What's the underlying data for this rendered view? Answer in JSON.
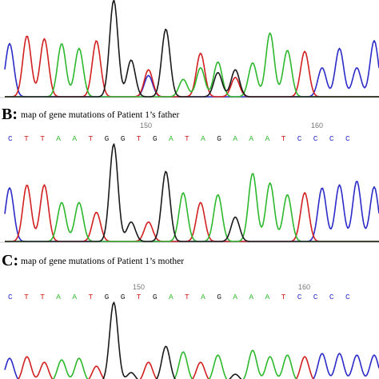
{
  "colors": {
    "A": "#2db82d",
    "C": "#2b2bc8",
    "G": "#1a1a1a",
    "T": "#d22020"
  },
  "panels": [
    {
      "id": "A",
      "letter": "",
      "title": "",
      "positions": [],
      "sequence": "",
      "peaks": [
        {
          "base": "C",
          "h": 0.55
        },
        {
          "base": "T",
          "h": 0.63
        },
        {
          "base": "T",
          "h": 0.6
        },
        {
          "base": "A",
          "h": 0.55
        },
        {
          "base": "A",
          "h": 0.5
        },
        {
          "base": "T",
          "h": 0.58
        },
        {
          "base": "G",
          "h": 1.0
        },
        {
          "base": "G",
          "h": 0.38
        },
        {
          "base": "T",
          "h": 0.28
        },
        {
          "base": "G",
          "h": 0.7
        },
        {
          "base": "A",
          "h": 0.18
        },
        {
          "base": "T",
          "h": 0.45
        },
        {
          "base": "A",
          "h": 0.36
        },
        {
          "base": "G",
          "h": 0.28
        },
        {
          "base": "A",
          "h": 0.35
        },
        {
          "base": "A",
          "h": 0.66
        },
        {
          "base": "A",
          "h": 0.48
        },
        {
          "base": "T",
          "h": 0.25
        },
        {
          "base": "C",
          "h": 0.3
        },
        {
          "base": "C",
          "h": 0.32
        },
        {
          "base": "C",
          "h": 0.3
        },
        {
          "base": "C",
          "h": 0.58
        }
      ],
      "secondary": [
        {
          "base": "C",
          "at": 8,
          "h": 0.22
        },
        {
          "base": "A",
          "at": 11,
          "h": 0.3
        },
        {
          "base": "G",
          "at": 12,
          "h": 0.25
        },
        {
          "base": "T",
          "at": 13,
          "h": 0.2
        },
        {
          "base": "T",
          "at": 17,
          "h": 0.22
        },
        {
          "base": "C",
          "at": 19,
          "h": 0.18
        }
      ]
    },
    {
      "id": "B",
      "letter": "B:",
      "title": "map of gene mutations of Patient 1’s father",
      "positions": [
        "150",
        "160"
      ],
      "sequence": "CTTAATGGTGATAGAAATCCCC",
      "peaks": [
        {
          "base": "C",
          "h": 0.55
        },
        {
          "base": "T",
          "h": 0.58
        },
        {
          "base": "T",
          "h": 0.58
        },
        {
          "base": "A",
          "h": 0.4
        },
        {
          "base": "A",
          "h": 0.4
        },
        {
          "base": "T",
          "h": 0.3
        },
        {
          "base": "G",
          "h": 1.0
        },
        {
          "base": "G",
          "h": 0.2
        },
        {
          "base": "T",
          "h": 0.2
        },
        {
          "base": "G",
          "h": 0.72
        },
        {
          "base": "A",
          "h": 0.5
        },
        {
          "base": "T",
          "h": 0.4
        },
        {
          "base": "A",
          "h": 0.48
        },
        {
          "base": "G",
          "h": 0.25
        },
        {
          "base": "A",
          "h": 0.7
        },
        {
          "base": "A",
          "h": 0.6
        },
        {
          "base": "A",
          "h": 0.48
        },
        {
          "base": "T",
          "h": 0.5
        },
        {
          "base": "C",
          "h": 0.55
        },
        {
          "base": "C",
          "h": 0.58
        },
        {
          "base": "C",
          "h": 0.62
        },
        {
          "base": "C",
          "h": 0.56
        }
      ],
      "secondary": []
    },
    {
      "id": "C",
      "letter": "C:",
      "title": "map of gene mutations of Patient 1’s mother",
      "positions": [
        "150",
        "160"
      ],
      "sequence": "CTTAATGGTGATAGAAATCCCC",
      "peaks": [
        {
          "base": "C",
          "h": 0.3
        },
        {
          "base": "T",
          "h": 0.32
        },
        {
          "base": "T",
          "h": 0.25
        },
        {
          "base": "A",
          "h": 0.28
        },
        {
          "base": "A",
          "h": 0.3
        },
        {
          "base": "T",
          "h": 0.2
        },
        {
          "base": "G",
          "h": 1.0
        },
        {
          "base": "G",
          "h": 0.12
        },
        {
          "base": "T",
          "h": 0.25
        },
        {
          "base": "G",
          "h": 0.45
        },
        {
          "base": "A",
          "h": 0.38
        },
        {
          "base": "T",
          "h": 0.25
        },
        {
          "base": "A",
          "h": 0.34
        },
        {
          "base": "G",
          "h": 0.1
        },
        {
          "base": "A",
          "h": 0.4
        },
        {
          "base": "A",
          "h": 0.32
        },
        {
          "base": "A",
          "h": 0.34
        },
        {
          "base": "T",
          "h": 0.32
        },
        {
          "base": "C",
          "h": 0.36
        },
        {
          "base": "C",
          "h": 0.36
        },
        {
          "base": "C",
          "h": 0.34
        },
        {
          "base": "C",
          "h": 0.34
        }
      ],
      "secondary": []
    }
  ]
}
